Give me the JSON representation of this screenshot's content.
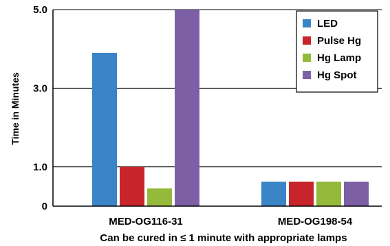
{
  "chart_data": {
    "type": "bar",
    "title": "",
    "ylabel": "Time in Minutes",
    "xlabel": "Can be cured in ≤ 1 minute with appropriate lamps",
    "categories": [
      "MED-OG116-31",
      "MED-OG198-54"
    ],
    "y_ticks": [
      "0",
      "1.0",
      "3.0",
      "5.0"
    ],
    "ylim": [
      0,
      5
    ],
    "grid": true,
    "legend_position": "top-right",
    "series": [
      {
        "name": "LED",
        "color": "#3a84c8",
        "values": [
          3.9,
          0.62
        ]
      },
      {
        "name": "Pulse Hg",
        "color": "#c8252b",
        "values": [
          1.0,
          0.62
        ]
      },
      {
        "name": "Hg Lamp",
        "color": "#95b93a",
        "values": [
          0.45,
          0.62
        ]
      },
      {
        "name": "Hg Spot",
        "color": "#7d5fa6",
        "values": [
          5.0,
          0.62
        ]
      }
    ]
  }
}
